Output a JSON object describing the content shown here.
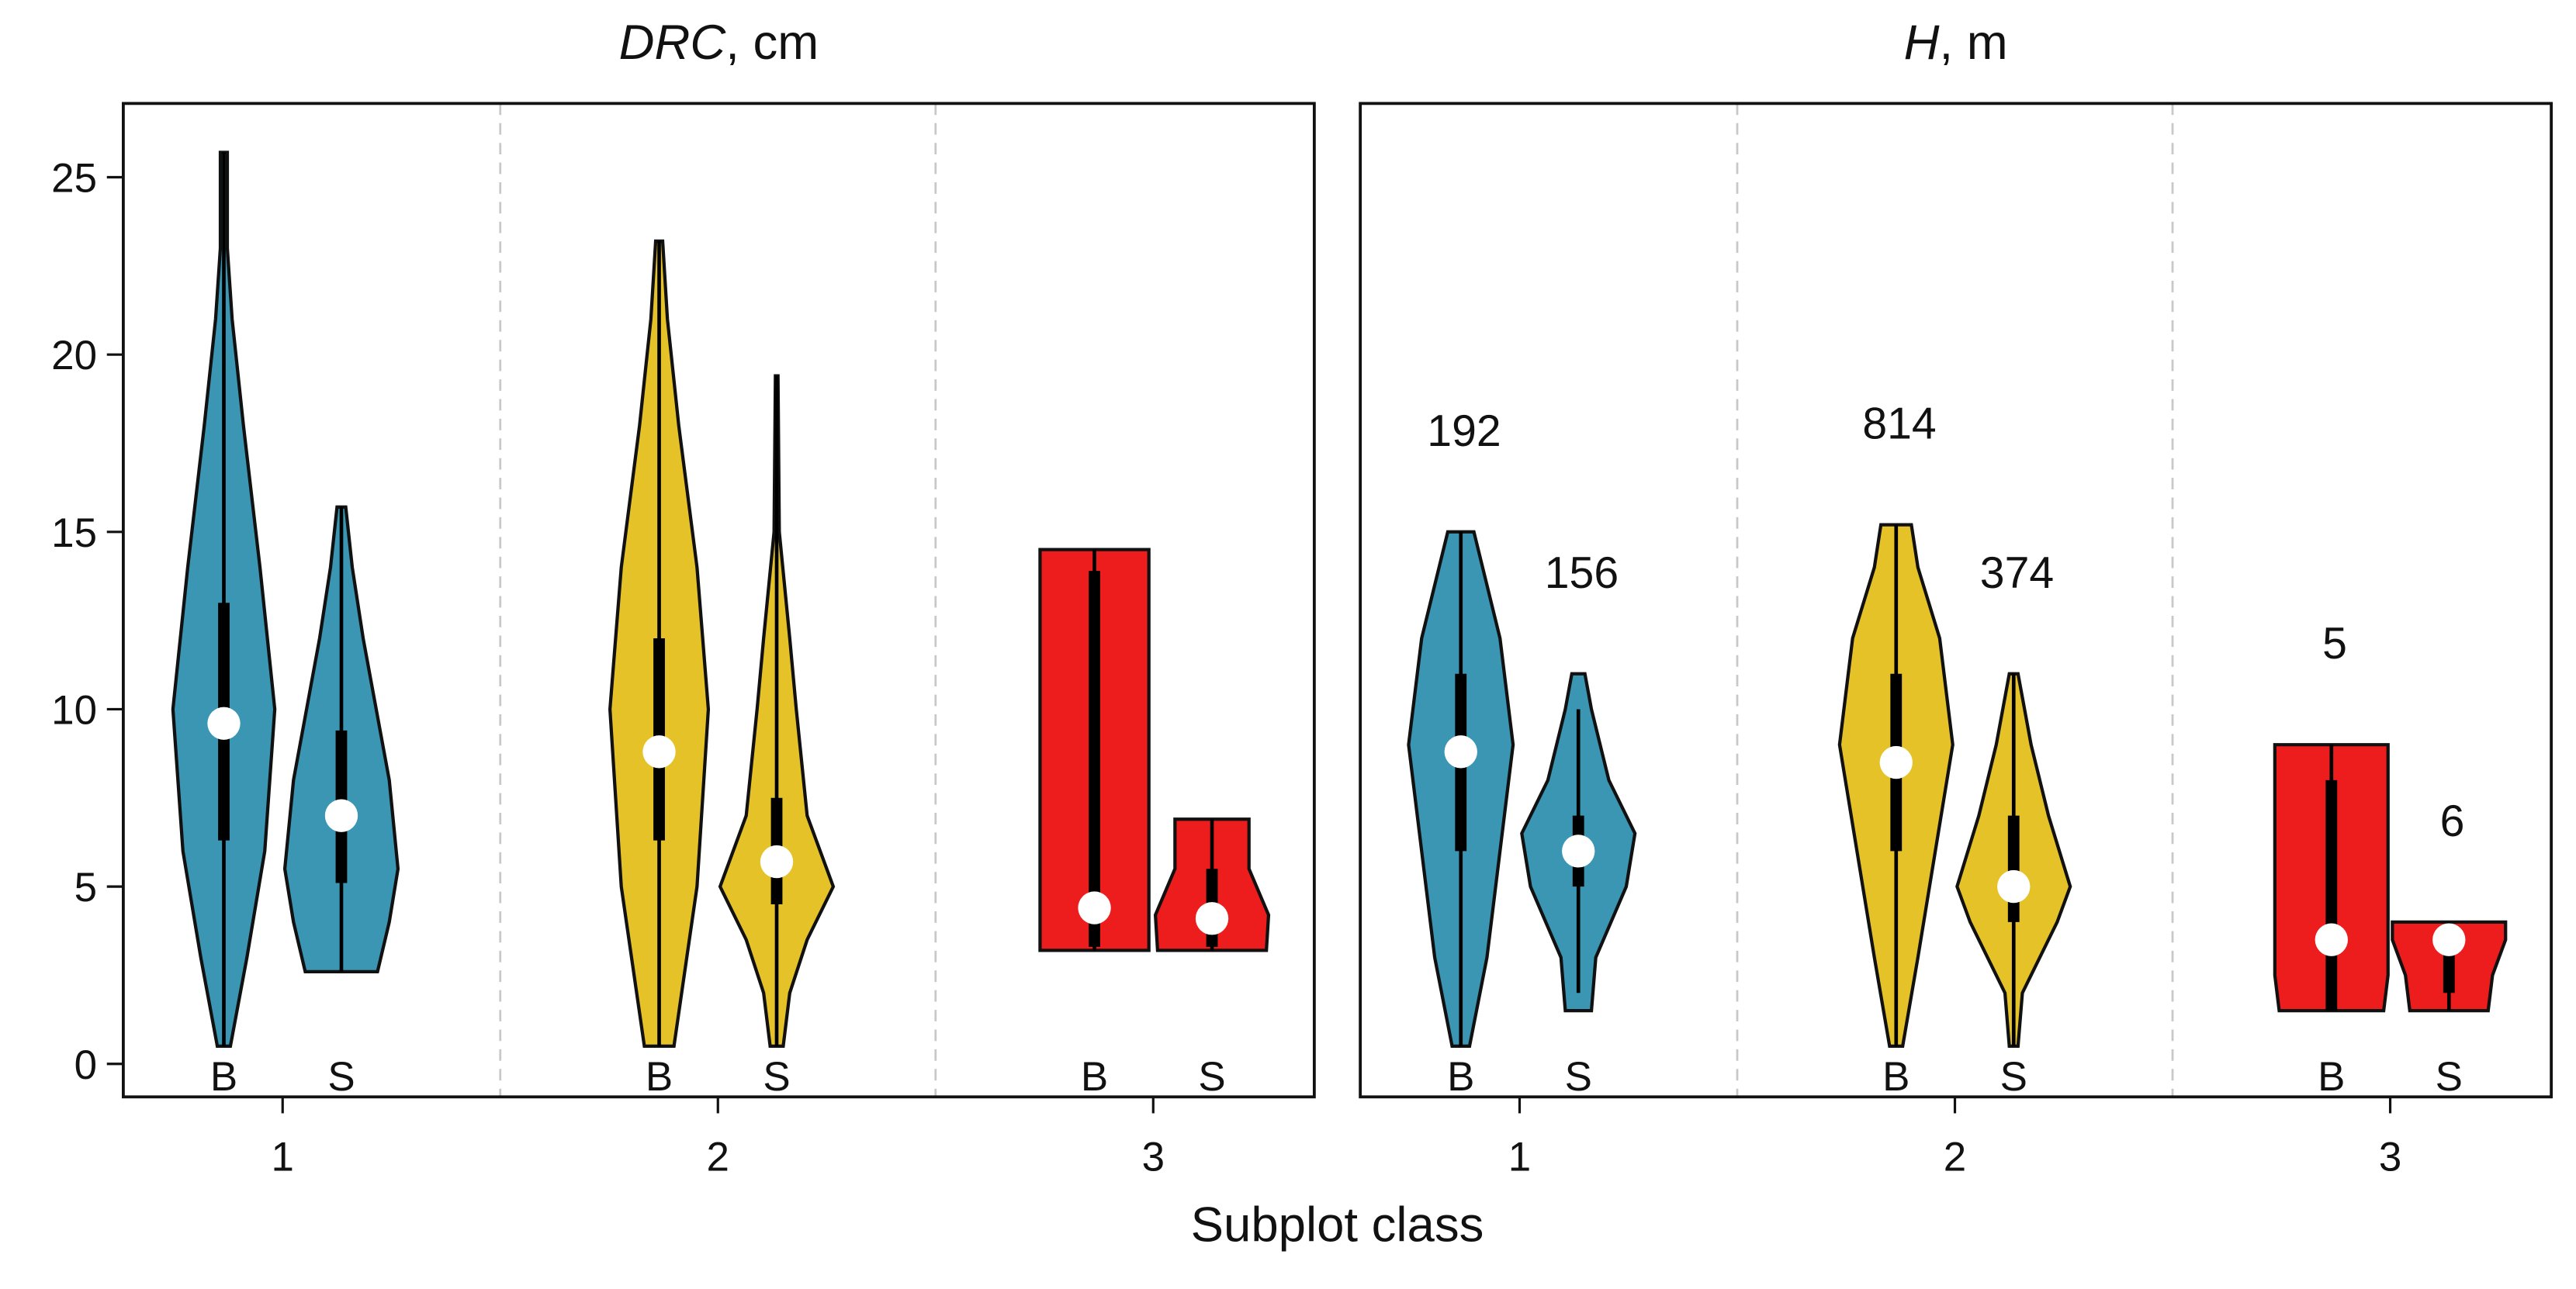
{
  "x_label": "Subplot class",
  "chart_data": [
    {
      "type": "violin",
      "title": {
        "symbol": "DRC",
        "text": ", cm"
      },
      "categories": [
        "1",
        "2",
        "3"
      ],
      "groups": [
        "B",
        "S"
      ],
      "colors": [
        "#3a96b2",
        "#e6c229",
        "#ee1d1d"
      ],
      "xlim": [
        0.634,
        3.37
      ],
      "ylim": [
        -0.93,
        27.08
      ],
      "yticks": [
        0,
        5,
        10,
        15,
        20,
        25
      ],
      "violins": [
        [
          {
            "whisker": [
              0.5,
              25.7
            ],
            "q1": 6.3,
            "q3": 13.0,
            "median": 9.6,
            "density": {
              "y": [
                0.5,
                3,
                6,
                10,
                14,
                18,
                21,
                23,
                25.7
              ],
              "width": [
                0.015,
                0.053,
                0.094,
                0.117,
                0.083,
                0.045,
                0.019,
                0.008,
                0.008
              ]
            }
          },
          {
            "whisker": [
              2.6,
              15.7
            ],
            "q1": 5.1,
            "q3": 9.4,
            "median": 7.0,
            "density": {
              "y": [
                2.6,
                4,
                5.5,
                8,
                10,
                12,
                14,
                15.7
              ],
              "width": [
                0.083,
                0.11,
                0.13,
                0.11,
                0.08,
                0.05,
                0.025,
                0.01
              ]
            }
          }
        ],
        [
          {
            "whisker": [
              0.5,
              23.2
            ],
            "q1": 6.3,
            "q3": 12.0,
            "median": 8.8,
            "density": {
              "y": [
                0.5,
                5,
                10,
                14,
                18,
                21,
                23.2
              ],
              "width": [
                0.034,
                0.087,
                0.113,
                0.087,
                0.045,
                0.019,
                0.008
              ]
            }
          },
          {
            "whisker": [
              0.5,
              19.4
            ],
            "q1": 4.5,
            "q3": 7.5,
            "median": 5.7,
            "density": {
              "y": [
                0.5,
                2,
                3.5,
                5,
                7,
                10,
                12,
                15,
                19.4
              ],
              "width": [
                0.015,
                0.03,
                0.07,
                0.13,
                0.07,
                0.045,
                0.03,
                0.006,
                0.003
              ]
            }
          }
        ],
        [
          {
            "whisker": [
              3.2,
              14.5
            ],
            "q1": 3.3,
            "q3": 13.9,
            "median": 4.4,
            "density": {
              "y": [
                3.2,
                14.5
              ],
              "width": [
                0.125,
                0.125
              ]
            }
          },
          {
            "whisker": [
              3.2,
              6.9
            ],
            "q1": 3.3,
            "q3": 5.5,
            "median": 4.1,
            "density": {
              "y": [
                3.2,
                4.2,
                5.5,
                6.9
              ],
              "width": [
                0.125,
                0.13,
                0.085,
                0.085
              ]
            }
          }
        ]
      ]
    },
    {
      "type": "violin",
      "title": {
        "symbol": "H",
        "text": ", m"
      },
      "categories": [
        "1",
        "2",
        "3"
      ],
      "groups": [
        "B",
        "S"
      ],
      "colors": [
        "#3a96b2",
        "#e6c229",
        "#ee1d1d"
      ],
      "xlim": [
        0.634,
        3.37
      ],
      "ylim": [
        -0.93,
        27.08
      ],
      "violins": [
        [
          {
            "whisker": [
              0.5,
              15
            ],
            "q1": 6.0,
            "q3": 11.0,
            "median": 8.8,
            "n": 192,
            "density": {
              "y": [
                0.5,
                3,
                6,
                9,
                12,
                14,
                15
              ],
              "width": [
                0.02,
                0.06,
                0.09,
                0.12,
                0.09,
                0.05,
                0.03
              ]
            }
          },
          {
            "whisker": [
              2,
              10
            ],
            "q1": 5.0,
            "q3": 7.0,
            "median": 6.0,
            "n": 156,
            "density": {
              "y": [
                1.5,
                3,
                5,
                6.5,
                8,
                10,
                11
              ],
              "width": [
                0.03,
                0.04,
                0.11,
                0.13,
                0.07,
                0.03,
                0.015
              ]
            }
          }
        ],
        [
          {
            "whisker": [
              0.5,
              15.2
            ],
            "q1": 6.0,
            "q3": 11.0,
            "median": 8.5,
            "n": 814,
            "density": {
              "y": [
                0.5,
                3,
                6,
                9,
                12,
                14,
                15.2
              ],
              "width": [
                0.015,
                0.05,
                0.09,
                0.13,
                0.1,
                0.05,
                0.035
              ]
            }
          },
          {
            "whisker": [
              0.5,
              11
            ],
            "q1": 4.0,
            "q3": 7.0,
            "median": 5.0,
            "n": 374,
            "density": {
              "y": [
                0.5,
                2,
                4,
                5,
                7,
                9,
                11
              ],
              "width": [
                0.01,
                0.02,
                0.1,
                0.13,
                0.08,
                0.04,
                0.01
              ]
            }
          }
        ],
        [
          {
            "whisker": [
              1.5,
              9
            ],
            "q1": 1.5,
            "q3": 8.0,
            "median": 3.5,
            "n": 5,
            "density": {
              "y": [
                1.5,
                2.5,
                9
              ],
              "width": [
                0.12,
                0.13,
                0.13
              ]
            }
          },
          {
            "whisker": [
              1.5,
              4
            ],
            "q1": 2.0,
            "q3": 3.5,
            "median": 3.5,
            "n": 6,
            "density": {
              "y": [
                1.5,
                2.5,
                3.5,
                4
              ],
              "width": [
                0.09,
                0.1,
                0.13,
                0.13
              ]
            }
          }
        ]
      ]
    }
  ]
}
